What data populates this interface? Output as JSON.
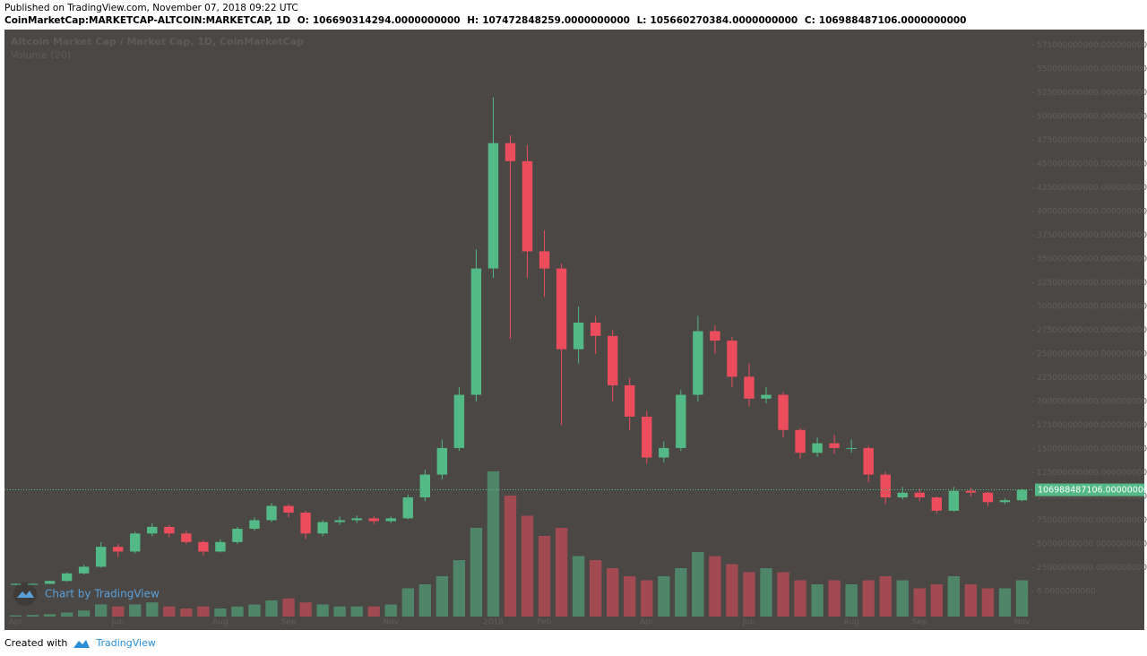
{
  "header": {
    "published": "Published on TradingView.com, November 07, 2018 09:22 UTC",
    "symbol": "CoinMarketCap:MARKETCAP-ALTCOIN:MARKETCAP, 1D",
    "ohlc": [
      {
        "name": "O:",
        "value": 106690314294,
        "label": "106690314294.0000000000"
      },
      {
        "name": "H:",
        "value": 107472848259,
        "label": "107472848259.0000000000"
      },
      {
        "name": "L:",
        "value": 105660270384,
        "label": "105660270384.0000000000"
      },
      {
        "name": "C:",
        "value": 106988487106,
        "label": "106988487106.0000000000"
      }
    ]
  },
  "chart_data": {
    "type": "candlestick",
    "title": "Altcoin Market Cap / Market Cap, 1D, CoinMarketCap",
    "volume_title": "Volume (20)",
    "watermark": "Chart by TradingView",
    "categories": [
      "Apr",
      null,
      null,
      null,
      null,
      null,
      "Jun",
      null,
      null,
      null,
      null,
      null,
      "Aug",
      null,
      null,
      null,
      "Sep",
      null,
      null,
      null,
      null,
      null,
      "Nov",
      null,
      null,
      null,
      null,
      null,
      "2018",
      null,
      null,
      "Feb",
      null,
      null,
      null,
      null,
      null,
      "Apr",
      null,
      null,
      null,
      null,
      null,
      "Jun",
      null,
      null,
      null,
      null,
      null,
      "Aug",
      null,
      null,
      null,
      "Sep",
      null,
      null,
      null,
      null,
      null,
      "Nov"
    ],
    "open": [
      7000000000.0,
      8000000000.0,
      8000000000.0,
      11000000000.0,
      19000000000.0,
      26000000000.0,
      47000000000.0,
      42000000000.0,
      61000000000.0,
      68000000000.0,
      61000000000.0,
      52000000000.0,
      42000000000.0,
      52000000000.0,
      66000000000.0,
      75000000000.0,
      90000000000.0,
      83000000000.0,
      61000000000.0,
      73000000000.0,
      75000000000.0,
      77000000000.0,
      74000000000.0,
      77000000000.0,
      99000000000.0,
      123000000000.0,
      151000000000.0,
      207000000000.0,
      340000000000.0,
      472000000000.0,
      453000000000.0,
      358000000000.0,
      340000000000.0,
      255000000000.0,
      283000000000.0,
      269000000000.0,
      217000000000.0,
      184000000000.0,
      141000000000.0,
      151000000000.0,
      207000000000.0,
      274000000000.0,
      264000000000.0,
      226000000000.0,
      203000000000.0,
      207000000000.0,
      170000000000.0,
      146000000000.0,
      156000000000.0,
      151000000000.0,
      151000000000.0,
      123000000000.0,
      99000000000.0,
      104000000000.0,
      99000000000.0,
      85000000000.0,
      106000000000.0,
      104000000000.0,
      94000000000.0,
      96000000000.0
    ],
    "high": [
      8500000000.0,
      8600000000.0,
      11500000000.0,
      20000000000.0,
      28000000000.0,
      52000000000.0,
      50000000000.0,
      63000000000.0,
      72000000000.0,
      70000000000.0,
      64000000000.0,
      54000000000.0,
      55000000000.0,
      68000000000.0,
      78000000000.0,
      93000000000.0,
      92000000000.0,
      85000000000.0,
      75000000000.0,
      79000000000.0,
      80000000000.0,
      79000000000.0,
      79000000000.0,
      102000000000.0,
      128000000000.0,
      160000000000.0,
      215000000000.0,
      360000000000.0,
      520000000000.0,
      480000000000.0,
      470000000000.0,
      380000000000.0,
      345000000000.0,
      300000000000.0,
      290000000000.0,
      275000000000.0,
      225000000000.0,
      190000000000.0,
      158000000000.0,
      212000000000.0,
      290000000000.0,
      280000000000.0,
      268000000000.0,
      240000000000.0,
      215000000000.0,
      210000000000.0,
      172000000000.0,
      162000000000.0,
      165000000000.0,
      160000000000.0,
      153000000000.0,
      126000000000.0,
      110000000000.0,
      108000000000.0,
      100000000000.0,
      110000000000.0,
      109000000000.0,
      105000000000.0,
      98000000000.0,
      108000000000.0
    ],
    "low": [
      6800000000.0,
      7600000000.0,
      7800000000.0,
      10500000000.0,
      18000000000.0,
      25000000000.0,
      36000000000.0,
      40000000000.0,
      58000000000.0,
      57000000000.0,
      50000000000.0,
      38000000000.0,
      41000000000.0,
      50000000000.0,
      64000000000.0,
      73000000000.0,
      78000000000.0,
      55000000000.0,
      58000000000.0,
      70000000000.0,
      72000000000.0,
      71000000000.0,
      72000000000.0,
      76000000000.0,
      95000000000.0,
      118000000000.0,
      148000000000.0,
      200000000000.0,
      330000000000.0,
      266000000000.0,
      330000000000.0,
      310000000000.0,
      175000000000.0,
      240000000000.0,
      250000000000.0,
      200000000000.0,
      170000000000.0,
      135000000000.0,
      136000000000.0,
      148000000000.0,
      200000000000.0,
      250000000000.0,
      215000000000.0,
      195000000000.0,
      198000000000.0,
      162000000000.0,
      140000000000.0,
      142000000000.0,
      145000000000.0,
      146000000000.0,
      115000000000.0,
      92000000000.0,
      97000000000.0,
      95000000000.0,
      82000000000.0,
      84000000000.0,
      100000000000.0,
      90000000000.0,
      92000000000.0,
      95000000000.0
    ],
    "close": [
      8000000000.0,
      8000000000.0,
      11000000000.0,
      19000000000.0,
      26000000000.0,
      47000000000.0,
      42000000000.0,
      61000000000.0,
      68000000000.0,
      61000000000.0,
      52000000000.0,
      42000000000.0,
      52000000000.0,
      66000000000.0,
      75000000000.0,
      90000000000.0,
      83000000000.0,
      61000000000.0,
      73000000000.0,
      75000000000.0,
      77000000000.0,
      74000000000.0,
      77000000000.0,
      99000000000.0,
      123000000000.0,
      151000000000.0,
      207000000000.0,
      340000000000.0,
      472000000000.0,
      453000000000.0,
      358000000000.0,
      340000000000.0,
      255000000000.0,
      283000000000.0,
      269000000000.0,
      217000000000.0,
      184000000000.0,
      141000000000.0,
      151000000000.0,
      207000000000.0,
      274000000000.0,
      264000000000.0,
      226000000000.0,
      203000000000.0,
      207000000000.0,
      170000000000.0,
      146000000000.0,
      156000000000.0,
      151000000000.0,
      151000000000.0,
      123000000000.0,
      99000000000.0,
      104000000000.0,
      99000000000.0,
      85000000000.0,
      106000000000.0,
      104000000000.0,
      94000000000.0,
      96000000000.0,
      106988487106
    ],
    "volume": [
      300000000.0,
      400000000.0,
      600000000.0,
      1000000000.0,
      1500000000.0,
      3000000000.0,
      2500000000.0,
      3000000000.0,
      3500000000.0,
      2500000000.0,
      2000000000.0,
      2500000000.0,
      2000000000.0,
      2500000000.0,
      3000000000.0,
      4000000000.0,
      4500000000.0,
      3500000000.0,
      3000000000.0,
      2500000000.0,
      2500000000.0,
      2500000000.0,
      3000000000.0,
      7000000000.0,
      8000000000.0,
      10000000000.0,
      14000000000.0,
      22000000000.0,
      36000000000.0,
      30000000000.0,
      25000000000.0,
      20000000000.0,
      22000000000.0,
      15000000000.0,
      14000000000.0,
      12000000000.0,
      10000000000.0,
      9000000000.0,
      10000000000.0,
      12000000000.0,
      16000000000.0,
      15000000000.0,
      13000000000.0,
      11000000000.0,
      12000000000.0,
      11000000000.0,
      9000000000.0,
      8000000000.0,
      9000000000.0,
      8000000000.0,
      9000000000.0,
      10000000000.0,
      9000000000.0,
      7000000000.0,
      8000000000.0,
      10000000000.0,
      8000000000.0,
      7000000000.0,
      7000000000.0,
      9000000000.0
    ],
    "volume_lim": [
      0,
      40000000000.0
    ],
    "up_color": "#53b987",
    "down_color": "#eb4d5c",
    "ylim": [
      -40600000000.0,
      591500000000.0
    ],
    "yticks": [
      {
        "value": 0,
        "label": "0.0000000000"
      },
      {
        "value": 25000000000.0,
        "label": "25000000000.0000000000"
      },
      {
        "value": 50000000000.0,
        "label": "50000000000.0000000000"
      },
      {
        "value": 75000000000.0,
        "label": "75000000000.0000000000"
      },
      {
        "value": 100000000000.0,
        "label": "100000000000.0000000000"
      },
      {
        "value": 125000000000.0,
        "label": "125000000000.0000000000"
      },
      {
        "value": 150000000000.0,
        "label": "150000000000.0000000000"
      },
      {
        "value": 175000000000.0,
        "label": "175000000000.0000000000"
      },
      {
        "value": 200000000000.0,
        "label": "200000000000.0000000000"
      },
      {
        "value": 225000000000.0,
        "label": "225000000000.0000000000"
      },
      {
        "value": 250000000000.0,
        "label": "250000000000.0000000000"
      },
      {
        "value": 275000000000.0,
        "label": "275000000000.0000000000"
      },
      {
        "value": 300000000000.0,
        "label": "300000000000.0000000000"
      },
      {
        "value": 325000000000.0,
        "label": "325000000000.0000000000"
      },
      {
        "value": 350000000000.0,
        "label": "350000000000.0000000000"
      },
      {
        "value": 375000000000.0,
        "label": "375000000000.0000000000"
      },
      {
        "value": 400000000000.0,
        "label": "400000000000.0000000000"
      },
      {
        "value": 425000000000.0,
        "label": "425000000000.0000000000"
      },
      {
        "value": 450000000000.0,
        "label": "450000000000.0000000000"
      },
      {
        "value": 475000000000.0,
        "label": "475000000000.0000000000"
      },
      {
        "value": 500000000000.0,
        "label": "500000000000.0000000000"
      },
      {
        "value": 525000000000.0,
        "label": "525000000000.0000000000"
      },
      {
        "value": 550000000000.0,
        "label": "550000000000.0000000000"
      },
      {
        "value": 575000000000.0,
        "label": "575000000000.0000000000"
      }
    ],
    "last_price": {
      "value": 106988487106,
      "label": "106988487106.0000000000"
    }
  },
  "footer": {
    "created": "Created with",
    "brand": "TradingView"
  }
}
